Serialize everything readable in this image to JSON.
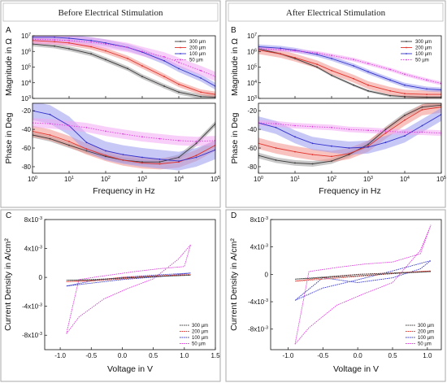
{
  "headers": {
    "left": "Before Electrical Stimulation",
    "right": "After Electrical Stimulation"
  },
  "colors": {
    "300": "#3a3a3a",
    "200": "#e0332b",
    "100": "#3333cc",
    "50": "#e040e0",
    "band300": "#9a9a9a",
    "band200": "#f2908a",
    "band100": "#9a9aee",
    "band50": "#f3a8f3"
  },
  "chart_data": [
    {
      "panel": "A",
      "type": "line",
      "header": "Before Electrical Stimulation",
      "xlabel": "Frequency in Hz",
      "xscale": "log",
      "xlim": [
        1,
        100000
      ],
      "xticks": [
        "10^0",
        "10^1",
        "10^2",
        "10^3",
        "10^4",
        "10^5"
      ],
      "subplots": [
        {
          "ylabel": "Magnitude in Ω",
          "yscale": "log",
          "ylim": [
            1000,
            10000000
          ],
          "yticks": [
            "10^3",
            "10^4",
            "10^5",
            "10^6",
            "10^7"
          ],
          "legend": "top-right",
          "series": [
            {
              "name": "300 µm",
              "key": "300",
              "style": "solid-dot",
              "band": 0.15,
              "x": [
                1,
                4,
                10,
                40,
                100,
                400,
                1000,
                4000,
                10000,
                40000,
                100000
              ],
              "y": [
                3000000,
                2200000,
                1500000,
                700000,
                300000,
                80000,
                25000,
                6000,
                2500,
                1300,
                1200
              ]
            },
            {
              "name": "200 µm",
              "key": "200",
              "style": "solid-dot",
              "band": 0.18,
              "x": [
                1,
                4,
                10,
                40,
                100,
                400,
                1000,
                4000,
                10000,
                40000,
                100000
              ],
              "y": [
                5000000,
                4200000,
                3500000,
                2000000,
                1100000,
                350000,
                120000,
                25000,
                8000,
                2500,
                1800
              ]
            },
            {
              "name": "100 µm",
              "key": "100",
              "style": "solid-dot",
              "band": 0.22,
              "x": [
                1,
                4,
                10,
                40,
                100,
                400,
                1000,
                4000,
                10000,
                40000,
                100000
              ],
              "y": [
                8000000,
                8000000,
                7000000,
                5000000,
                3500000,
                1800000,
                900000,
                250000,
                80000,
                20000,
                6000
              ]
            },
            {
              "name": "50 µm",
              "key": "50",
              "style": "dotted",
              "band": 0.3,
              "x": [
                1,
                4,
                10,
                40,
                100,
                400,
                1000,
                4000,
                10000,
                40000,
                100000
              ],
              "y": [
                6000000,
                5500000,
                5000000,
                4000000,
                3000000,
                1800000,
                1000000,
                450000,
                200000,
                60000,
                25000
              ]
            }
          ]
        },
        {
          "ylabel": "Phase in Deg",
          "yscale": "linear",
          "ylim": [
            -87,
            -12
          ],
          "yticks": [
            -20,
            -40,
            -60,
            -80
          ],
          "series": [
            {
              "name": "300 µm",
              "key": "300",
              "style": "solid-dot",
              "band": 3,
              "x": [
                1,
                3,
                10,
                30,
                100,
                300,
                1000,
                3000,
                10000,
                30000,
                100000
              ],
              "y": [
                -46,
                -50,
                -57,
                -63,
                -69,
                -73,
                -75,
                -75,
                -70,
                -55,
                -34
              ]
            },
            {
              "name": "200 µm",
              "key": "200",
              "style": "solid-dot",
              "band": 6,
              "x": [
                1,
                3,
                10,
                30,
                100,
                300,
                1000,
                3000,
                10000,
                30000,
                100000
              ],
              "y": [
                -42,
                -46,
                -53,
                -61,
                -68,
                -73,
                -76,
                -77,
                -75,
                -68,
                -57
              ]
            },
            {
              "name": "100 µm",
              "key": "100",
              "style": "solid-dot",
              "band": 10,
              "x": [
                1,
                3,
                10,
                30,
                100,
                300,
                1000,
                3000,
                10000,
                30000,
                100000
              ],
              "y": [
                -20,
                -24,
                -36,
                -54,
                -63,
                -67,
                -70,
                -72,
                -74,
                -70,
                -62
              ]
            },
            {
              "name": "50 µm",
              "key": "50",
              "style": "dotted",
              "band": 5,
              "x": [
                1,
                3,
                10,
                30,
                100,
                300,
                1000,
                3000,
                10000,
                30000,
                100000
              ],
              "y": [
                -33,
                -34,
                -36,
                -38,
                -42,
                -45,
                -48,
                -50,
                -52,
                -53,
                -52
              ]
            }
          ]
        }
      ]
    },
    {
      "panel": "B",
      "type": "line",
      "header": "After Electrical Stimulation",
      "xlabel": "Frequency in Hz",
      "xscale": "log",
      "xlim": [
        1,
        100000
      ],
      "xticks": [
        "10^0",
        "10^1",
        "10^2",
        "10^3",
        "10^4",
        "10^5"
      ],
      "subplots": [
        {
          "ylabel": "Magnitude in Ω",
          "yscale": "log",
          "ylim": [
            1000,
            10000000
          ],
          "yticks": [
            "10^3",
            "10^4",
            "10^5",
            "10^6",
            "10^7"
          ],
          "legend": "top-right",
          "series": [
            {
              "name": "300 µm",
              "key": "300",
              "style": "solid-dot",
              "band": 0.08,
              "x": [
                1,
                4,
                10,
                40,
                100,
                400,
                1000,
                4000,
                10000,
                40000,
                100000
              ],
              "y": [
                1500000,
                700000,
                350000,
                100000,
                30000,
                7000,
                3000,
                1500,
                1300,
                1200,
                1200
              ]
            },
            {
              "name": "200 µm",
              "key": "200",
              "style": "solid-dot",
              "band": 0.25,
              "x": [
                1,
                4,
                10,
                40,
                100,
                400,
                1000,
                4000,
                10000,
                40000,
                100000
              ],
              "y": [
                1200000,
                700000,
                400000,
                150000,
                60000,
                18000,
                7000,
                3000,
                2000,
                1800,
                1800
              ]
            },
            {
              "name": "100 µm",
              "key": "100",
              "style": "solid-dot",
              "band": 0.15,
              "x": [
                1,
                4,
                10,
                40,
                100,
                400,
                1000,
                4000,
                10000,
                40000,
                100000
              ],
              "y": [
                2000000,
                1600000,
                1200000,
                650000,
                350000,
                120000,
                50000,
                15000,
                7000,
                4000,
                3500
              ]
            },
            {
              "name": "50 µm",
              "key": "50",
              "style": "dotted",
              "band": 0.12,
              "x": [
                1,
                4,
                10,
                40,
                100,
                400,
                1000,
                4000,
                10000,
                40000,
                100000
              ],
              "y": [
                1500000,
                1300000,
                1100000,
                800000,
                550000,
                300000,
                170000,
                70000,
                35000,
                15000,
                9000
              ]
            }
          ]
        },
        {
          "ylabel": "Phase in Deg",
          "yscale": "linear",
          "ylim": [
            -87,
            -12
          ],
          "yticks": [
            -20,
            -40,
            -60,
            -80
          ],
          "series": [
            {
              "name": "300 µm",
              "key": "300",
              "style": "solid-dot",
              "band": 3,
              "x": [
                1,
                3,
                10,
                30,
                100,
                300,
                1000,
                3000,
                10000,
                30000,
                100000
              ],
              "y": [
                -68,
                -73,
                -76,
                -77,
                -74,
                -67,
                -56,
                -40,
                -25,
                -16,
                -14
              ]
            },
            {
              "name": "200 µm",
              "key": "200",
              "style": "solid-dot",
              "band": 6,
              "x": [
                1,
                3,
                10,
                30,
                100,
                300,
                1000,
                3000,
                10000,
                30000,
                100000
              ],
              "y": [
                -55,
                -60,
                -64,
                -67,
                -69,
                -66,
                -58,
                -44,
                -30,
                -19,
                -16
              ]
            },
            {
              "name": "100 µm",
              "key": "100",
              "style": "solid-dot",
              "band": 7,
              "x": [
                1,
                3,
                10,
                30,
                100,
                300,
                1000,
                3000,
                10000,
                30000,
                100000
              ],
              "y": [
                -33,
                -38,
                -48,
                -55,
                -58,
                -60,
                -59,
                -54,
                -47,
                -36,
                -24
              ]
            },
            {
              "name": "50 µm",
              "key": "50",
              "style": "dotted",
              "band": 3,
              "x": [
                1,
                3,
                10,
                30,
                100,
                300,
                1000,
                3000,
                10000,
                30000,
                100000
              ],
              "y": [
                -33,
                -34,
                -36,
                -37,
                -38,
                -40,
                -41,
                -42,
                -43,
                -43,
                -44
              ]
            }
          ]
        }
      ]
    },
    {
      "panel": "C",
      "type": "line",
      "xlabel": "Voltage in V",
      "ylabel": "Current Density in A/cm²",
      "xlim": [
        -1.25,
        1.5
      ],
      "ylim": [
        -0.01,
        0.008
      ],
      "xticks": [
        -1.0,
        -0.5,
        0.0,
        0.5,
        1.0,
        1.5
      ],
      "yticks": [
        {
          "v": 0.008,
          "label": "8x10^-3"
        },
        {
          "v": 0.004,
          "label": "4x10^-3"
        },
        {
          "v": 0,
          "label": "0"
        },
        {
          "v": -0.004,
          "label": "-4x10^-3"
        },
        {
          "v": -0.008,
          "label": "-8x10^-3"
        }
      ],
      "legend": "bottom-right",
      "series": [
        {
          "name": "300 µm",
          "key": "300",
          "x": [
            -0.9,
            -0.5,
            0,
            0.5,
            1.1,
            0.5,
            0,
            -0.5,
            -0.9
          ],
          "y": [
            -0.0004,
            -0.0003,
            -0.0001,
            0.0001,
            0.0003,
            0.0001,
            -0.0001,
            -0.0004,
            -0.0004
          ]
        },
        {
          "name": "200 µm",
          "key": "200",
          "x": [
            -0.9,
            -0.5,
            0,
            0.5,
            1.1,
            0.5,
            0,
            -0.5,
            -0.9
          ],
          "y": [
            -0.0006,
            -0.0004,
            0,
            0.0002,
            0.0004,
            0.0001,
            -0.0002,
            -0.0005,
            -0.0006
          ]
        },
        {
          "name": "100 µm",
          "key": "100",
          "x": [
            -0.9,
            -0.5,
            0,
            0.5,
            1.1,
            0.6,
            0,
            -0.5,
            -0.9
          ],
          "y": [
            -0.0012,
            -0.0005,
            0,
            0.0003,
            0.0006,
            0.0001,
            -0.0003,
            -0.0008,
            -0.0012
          ]
        },
        {
          "name": "50 µm",
          "key": "50",
          "x": [
            -0.9,
            -0.7,
            -0.3,
            0.1,
            0.5,
            0.9,
            1.1,
            1.0,
            0.6,
            0.2,
            -0.3,
            -0.7,
            -0.9
          ],
          "y": [
            -0.0078,
            -0.0055,
            -0.003,
            -0.0015,
            -0.0002,
            0.0025,
            0.0045,
            0.0015,
            0.0012,
            0.0008,
            0.0002,
            -0.0003,
            -0.0078
          ]
        }
      ]
    },
    {
      "panel": "D",
      "type": "line",
      "xlabel": "Voltage in V",
      "ylabel": "Current Density in A/cm²",
      "xlim": [
        -1.25,
        1.2
      ],
      "ylim": [
        -0.011,
        0.008
      ],
      "xticks": [
        -1.0,
        -0.5,
        0.0,
        0.5,
        1.0
      ],
      "yticks": [
        {
          "v": 0.008,
          "label": "8x10^-3"
        },
        {
          "v": 0.004,
          "label": "4x10^-3"
        },
        {
          "v": 0,
          "label": "0"
        },
        {
          "v": -0.004,
          "label": "-4x10^-3"
        },
        {
          "v": -0.008,
          "label": "-8x10^-3"
        }
      ],
      "legend": "bottom-right",
      "series": [
        {
          "name": "300 µm",
          "key": "300",
          "x": [
            -0.9,
            -0.5,
            0,
            0.5,
            1.05,
            0.5,
            0,
            -0.5,
            -0.9
          ],
          "y": [
            -0.0007,
            -0.0004,
            0,
            0.0002,
            0.0004,
            0.0001,
            -0.0002,
            -0.0005,
            -0.0007
          ]
        },
        {
          "name": "200 µm",
          "key": "200",
          "x": [
            -0.9,
            -0.5,
            0,
            0.5,
            1.05,
            0.5,
            0,
            -0.5,
            -0.9
          ],
          "y": [
            -0.001,
            -0.0005,
            0,
            0.0002,
            0.0005,
            0.0001,
            -0.0003,
            -0.0007,
            -0.001
          ]
        },
        {
          "name": "100 µm",
          "key": "100",
          "x": [
            -0.9,
            -0.5,
            0,
            0.5,
            1.05,
            0.9,
            0.5,
            0,
            -0.5,
            -0.9
          ],
          "y": [
            -0.0038,
            -0.002,
            -0.0008,
            0.0005,
            0.002,
            0.0008,
            -0.0005,
            -0.0012,
            -0.0005,
            -0.0038
          ]
        },
        {
          "name": "50 µm",
          "key": "50",
          "x": [
            -0.9,
            -0.7,
            -0.3,
            0.1,
            0.5,
            0.9,
            1.05,
            0.9,
            0.5,
            0.1,
            -0.3,
            -0.7,
            -0.9
          ],
          "y": [
            -0.0102,
            -0.0078,
            -0.0045,
            -0.0028,
            -0.0012,
            0.0035,
            0.0072,
            0.003,
            0.0018,
            0.0015,
            0.001,
            0.0004,
            -0.0102
          ]
        }
      ]
    }
  ]
}
